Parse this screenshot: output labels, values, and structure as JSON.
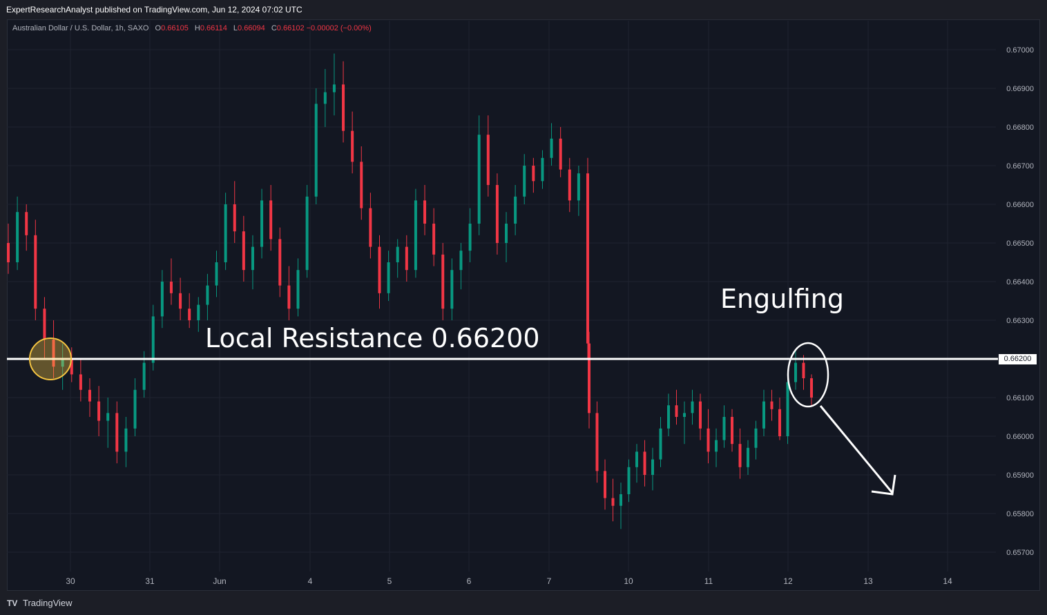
{
  "header": {
    "published_text": "ExpertResearchAnalyst published on TradingView.com, Jun 12, 2024 07:02 UTC"
  },
  "legend": {
    "symbol": "Australian Dollar / U.S. Dollar, 1h, SAXO",
    "open_label": "O",
    "open_value": "0.66105",
    "high_label": "H",
    "high_value": "0.66114",
    "low_label": "L",
    "low_value": "0.66094",
    "close_label": "C",
    "close_value": "0.66102",
    "change": "−0.00002 (−0.00%)"
  },
  "footer": {
    "brand": "TradingView",
    "logo": "TV"
  },
  "annotations": {
    "resistance_text": "Local Resistance 0.66200",
    "pattern_text": "Engulfing",
    "price_tag": "0.66200"
  },
  "colors": {
    "up": "#089981",
    "down": "#f23645",
    "background": "#131722",
    "grid": "#1f2330",
    "line": "#ffffff",
    "highlight": "#f5c542"
  },
  "chart_data": {
    "type": "candlestick",
    "title": "Australian Dollar / U.S. Dollar, 1h, SAXO",
    "ylim": [
      0.657,
      0.67
    ],
    "y_ticks": [
      "0.67000",
      "0.66900",
      "0.66800",
      "0.66700",
      "0.66600",
      "0.66500",
      "0.66400",
      "0.66300",
      "0.66200",
      "0.66100",
      "0.66000",
      "0.65900",
      "0.65800",
      "0.65700"
    ],
    "x_ticks": [
      "30",
      "31",
      "Jun",
      "4",
      "5",
      "6",
      "7",
      "10",
      "11",
      "12",
      "13",
      "14"
    ],
    "resistance_level": 0.662,
    "series": [
      {
        "segment": "May 29 – Jun 7",
        "candles": [
          [
            0.665,
            0.6655,
            0.6642,
            0.6645
          ],
          [
            0.6645,
            0.6662,
            0.6643,
            0.6658
          ],
          [
            0.6658,
            0.666,
            0.6648,
            0.6652
          ],
          [
            0.6652,
            0.6656,
            0.663,
            0.6633
          ],
          [
            0.6633,
            0.6636,
            0.662,
            0.6625
          ],
          [
            0.6625,
            0.663,
            0.6615,
            0.6618
          ],
          [
            0.6618,
            0.6624,
            0.6612,
            0.662
          ],
          [
            0.662,
            0.6623,
            0.6614,
            0.6616
          ],
          [
            0.6616,
            0.662,
            0.6609,
            0.6612
          ],
          [
            0.6612,
            0.6615,
            0.6605,
            0.6609
          ],
          [
            0.6609,
            0.6613,
            0.66,
            0.6604
          ],
          [
            0.6604,
            0.661,
            0.6597,
            0.6606
          ],
          [
            0.6606,
            0.6609,
            0.6593,
            0.6596
          ],
          [
            0.6596,
            0.6605,
            0.6592,
            0.6602
          ],
          [
            0.6602,
            0.6615,
            0.66,
            0.6612
          ],
          [
            0.6612,
            0.6622,
            0.661,
            0.6619
          ],
          [
            0.6619,
            0.6634,
            0.6617,
            0.6631
          ],
          [
            0.6631,
            0.6643,
            0.6628,
            0.664
          ],
          [
            0.664,
            0.6646,
            0.6634,
            0.6637
          ],
          [
            0.6637,
            0.6641,
            0.663,
            0.6633
          ],
          [
            0.6633,
            0.6637,
            0.6628,
            0.663
          ],
          [
            0.663,
            0.6636,
            0.6627,
            0.6634
          ],
          [
            0.6634,
            0.6642,
            0.663,
            0.6639
          ],
          [
            0.6639,
            0.6648,
            0.6636,
            0.6645
          ],
          [
            0.6645,
            0.6663,
            0.6643,
            0.666
          ],
          [
            0.666,
            0.6666,
            0.665,
            0.6653
          ],
          [
            0.6653,
            0.6657,
            0.664,
            0.6643
          ],
          [
            0.6643,
            0.6652,
            0.6638,
            0.6649
          ],
          [
            0.6649,
            0.6664,
            0.6646,
            0.6661
          ],
          [
            0.6661,
            0.6665,
            0.6648,
            0.6651
          ],
          [
            0.6651,
            0.6654,
            0.6636,
            0.6639
          ],
          [
            0.6639,
            0.6644,
            0.663,
            0.6633
          ],
          [
            0.6633,
            0.6646,
            0.6631,
            0.6643
          ],
          [
            0.6643,
            0.6665,
            0.6641,
            0.6662
          ],
          [
            0.6662,
            0.669,
            0.666,
            0.6686
          ],
          [
            0.6686,
            0.6695,
            0.668,
            0.6689
          ],
          [
            0.6689,
            0.6699,
            0.6683,
            0.6691
          ],
          [
            0.6691,
            0.6697,
            0.6676,
            0.6679
          ],
          [
            0.6679,
            0.6684,
            0.6668,
            0.6671
          ],
          [
            0.6671,
            0.6675,
            0.6656,
            0.6659
          ],
          [
            0.6659,
            0.6663,
            0.6646,
            0.6649
          ],
          [
            0.6649,
            0.6652,
            0.6633,
            0.6637
          ],
          [
            0.6637,
            0.6648,
            0.6635,
            0.6645
          ],
          [
            0.6645,
            0.6651,
            0.6641,
            0.6649
          ],
          [
            0.6649,
            0.6652,
            0.664,
            0.6643
          ],
          [
            0.6643,
            0.6664,
            0.6641,
            0.6661
          ],
          [
            0.6661,
            0.6665,
            0.6652,
            0.6655
          ],
          [
            0.6655,
            0.6659,
            0.6644,
            0.6647
          ],
          [
            0.6647,
            0.665,
            0.663,
            0.6633
          ],
          [
            0.6633,
            0.6646,
            0.663,
            0.6643
          ],
          [
            0.6643,
            0.665,
            0.6638,
            0.6648
          ],
          [
            0.6648,
            0.6659,
            0.6645,
            0.6655
          ],
          [
            0.6655,
            0.6683,
            0.6652,
            0.6678
          ],
          [
            0.6678,
            0.6683,
            0.6662,
            0.6665
          ],
          [
            0.6665,
            0.6668,
            0.6647,
            0.665
          ],
          [
            0.665,
            0.6658,
            0.6645,
            0.6655
          ],
          [
            0.6655,
            0.6665,
            0.6652,
            0.6662
          ],
          [
            0.6662,
            0.6673,
            0.666,
            0.667
          ],
          [
            0.667,
            0.6672,
            0.6663,
            0.6666
          ],
          [
            0.6666,
            0.6674,
            0.6664,
            0.6672
          ],
          [
            0.6672,
            0.6681,
            0.667,
            0.6677
          ],
          [
            0.6677,
            0.668,
            0.6667,
            0.6669
          ],
          [
            0.6669,
            0.6672,
            0.6658,
            0.6661
          ],
          [
            0.6661,
            0.667,
            0.6657,
            0.6668
          ],
          [
            0.6668,
            0.6672,
            0.662,
            0.6624
          ]
        ]
      },
      {
        "segment": "Jun 7 – Jun 12",
        "candles": [
          [
            0.6624,
            0.6627,
            0.6602,
            0.6606
          ],
          [
            0.6606,
            0.6609,
            0.6588,
            0.6591
          ],
          [
            0.6591,
            0.6594,
            0.6581,
            0.6584
          ],
          [
            0.6584,
            0.6589,
            0.6578,
            0.6582
          ],
          [
            0.6582,
            0.6588,
            0.6576,
            0.6585
          ],
          [
            0.6585,
            0.6594,
            0.6583,
            0.6592
          ],
          [
            0.6592,
            0.6598,
            0.6588,
            0.6596
          ],
          [
            0.6596,
            0.6599,
            0.6587,
            0.659
          ],
          [
            0.659,
            0.6597,
            0.6586,
            0.6594
          ],
          [
            0.6594,
            0.6605,
            0.6592,
            0.6602
          ],
          [
            0.6602,
            0.6611,
            0.66,
            0.6608
          ],
          [
            0.6608,
            0.6612,
            0.6603,
            0.6605
          ],
          [
            0.6605,
            0.6609,
            0.6598,
            0.6606
          ],
          [
            0.6606,
            0.6612,
            0.6603,
            0.6609
          ],
          [
            0.6609,
            0.6611,
            0.6599,
            0.6602
          ],
          [
            0.6602,
            0.6607,
            0.6593,
            0.6596
          ],
          [
            0.6596,
            0.6602,
            0.6592,
            0.6599
          ],
          [
            0.6599,
            0.6608,
            0.6597,
            0.6605
          ],
          [
            0.6605,
            0.6607,
            0.6596,
            0.6598
          ],
          [
            0.6598,
            0.6602,
            0.6589,
            0.6592
          ],
          [
            0.6592,
            0.6599,
            0.659,
            0.6597
          ],
          [
            0.6597,
            0.6604,
            0.6594,
            0.6602
          ],
          [
            0.6602,
            0.6612,
            0.66,
            0.6609
          ],
          [
            0.6609,
            0.6612,
            0.6604,
            0.6607
          ],
          [
            0.6607,
            0.661,
            0.6599,
            0.66
          ],
          [
            0.66,
            0.6617,
            0.6598,
            0.6614
          ],
          [
            0.6614,
            0.6622,
            0.6612,
            0.6619
          ],
          [
            0.6619,
            0.6621,
            0.6612,
            0.6615
          ],
          [
            0.6615,
            0.6616,
            0.6608,
            0.661
          ]
        ]
      }
    ]
  }
}
